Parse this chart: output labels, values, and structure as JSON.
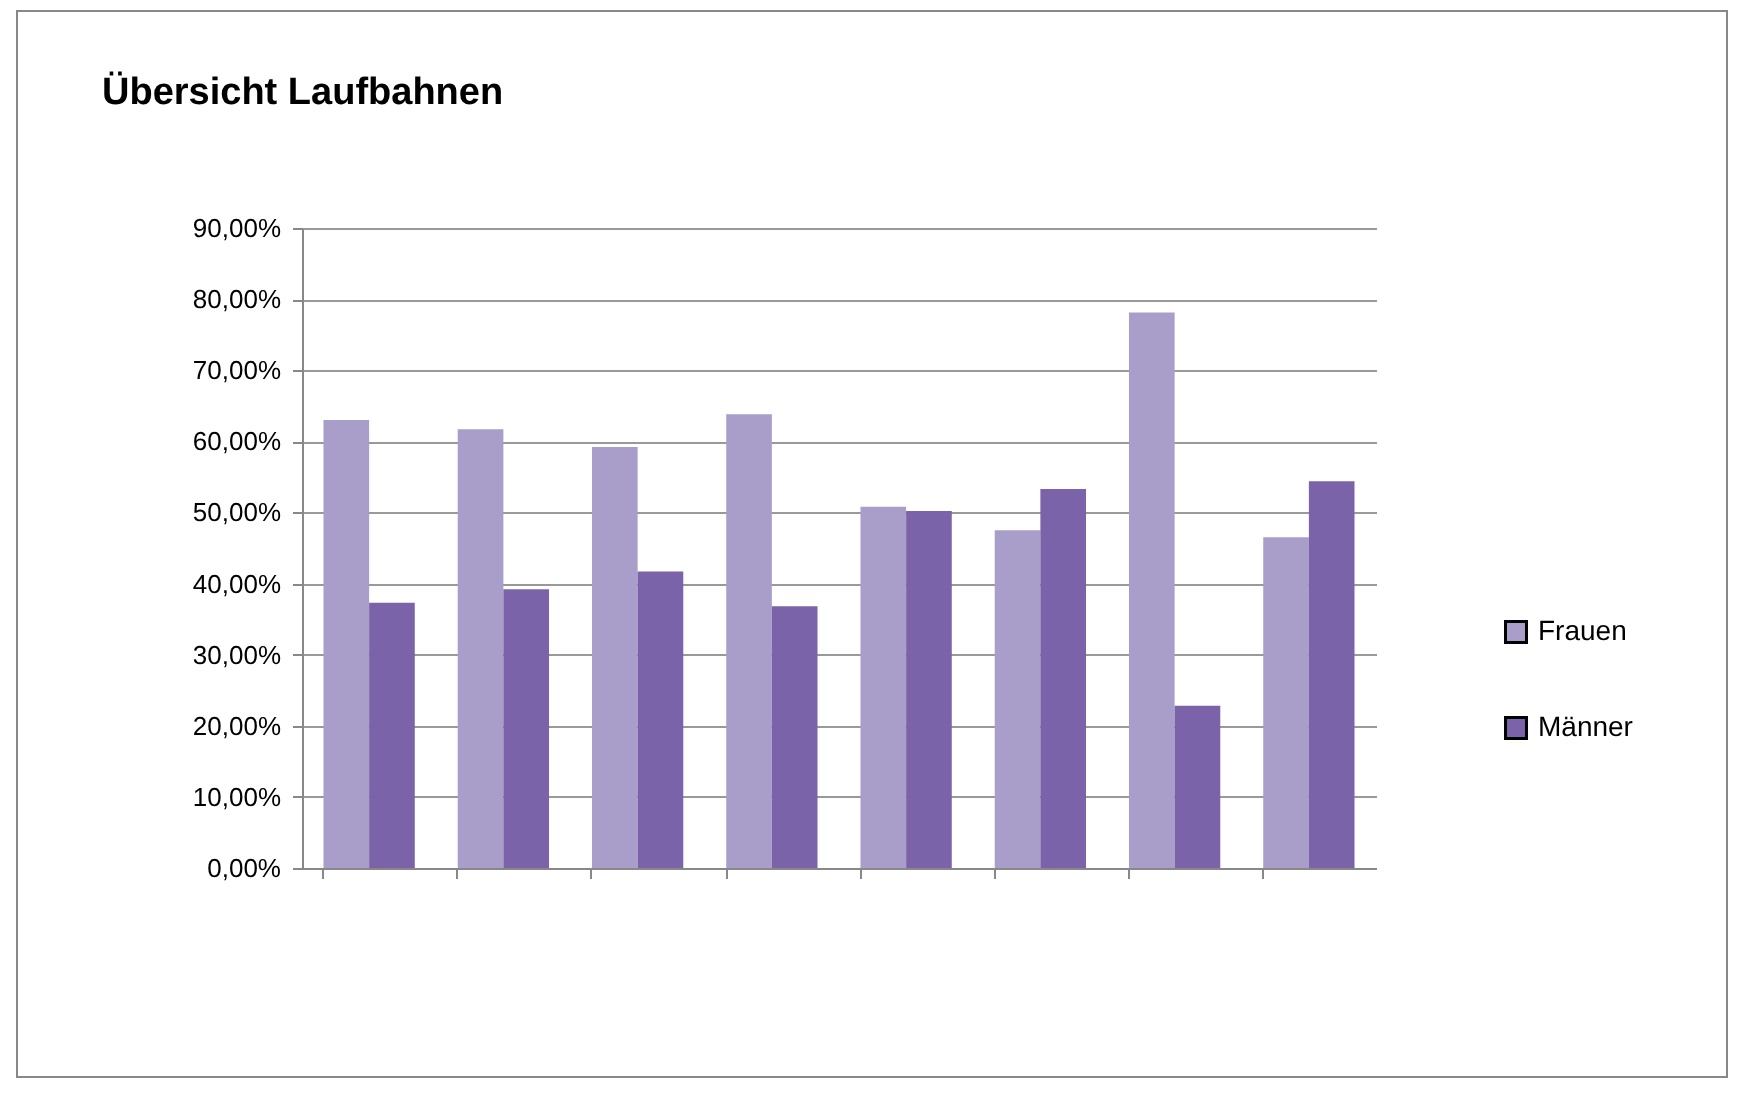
{
  "chart_data": {
    "type": "bar",
    "title": "Übersicht Laufbahnen",
    "categories": [
      null,
      null,
      null,
      null,
      null,
      null,
      null,
      null
    ],
    "series": [
      {
        "name": "Frauen",
        "color": "#a99ec9",
        "values": [
          63.0,
          61.7,
          59.2,
          63.8,
          50.8,
          47.5,
          78.1,
          46.5
        ]
      },
      {
        "name": "Männer",
        "color": "#7a63a8",
        "values": [
          37.3,
          39.2,
          41.7,
          36.8,
          50.2,
          53.3,
          22.8,
          54.4
        ]
      }
    ],
    "ylim": [
      0,
      90
    ],
    "yticks": [
      {
        "value": 0,
        "label": "0,00%"
      },
      {
        "value": 10,
        "label": "10,00%"
      },
      {
        "value": 20,
        "label": "20,00%"
      },
      {
        "value": 30,
        "label": "30,00%"
      },
      {
        "value": 40,
        "label": "40,00%"
      },
      {
        "value": 50,
        "label": "50,00%"
      },
      {
        "value": 60,
        "label": "60,00%"
      },
      {
        "value": 70,
        "label": "70,00%"
      },
      {
        "value": 80,
        "label": "80,00%"
      },
      {
        "value": 90,
        "label": "90,00%"
      }
    ],
    "grid": "y",
    "legend": "right"
  }
}
